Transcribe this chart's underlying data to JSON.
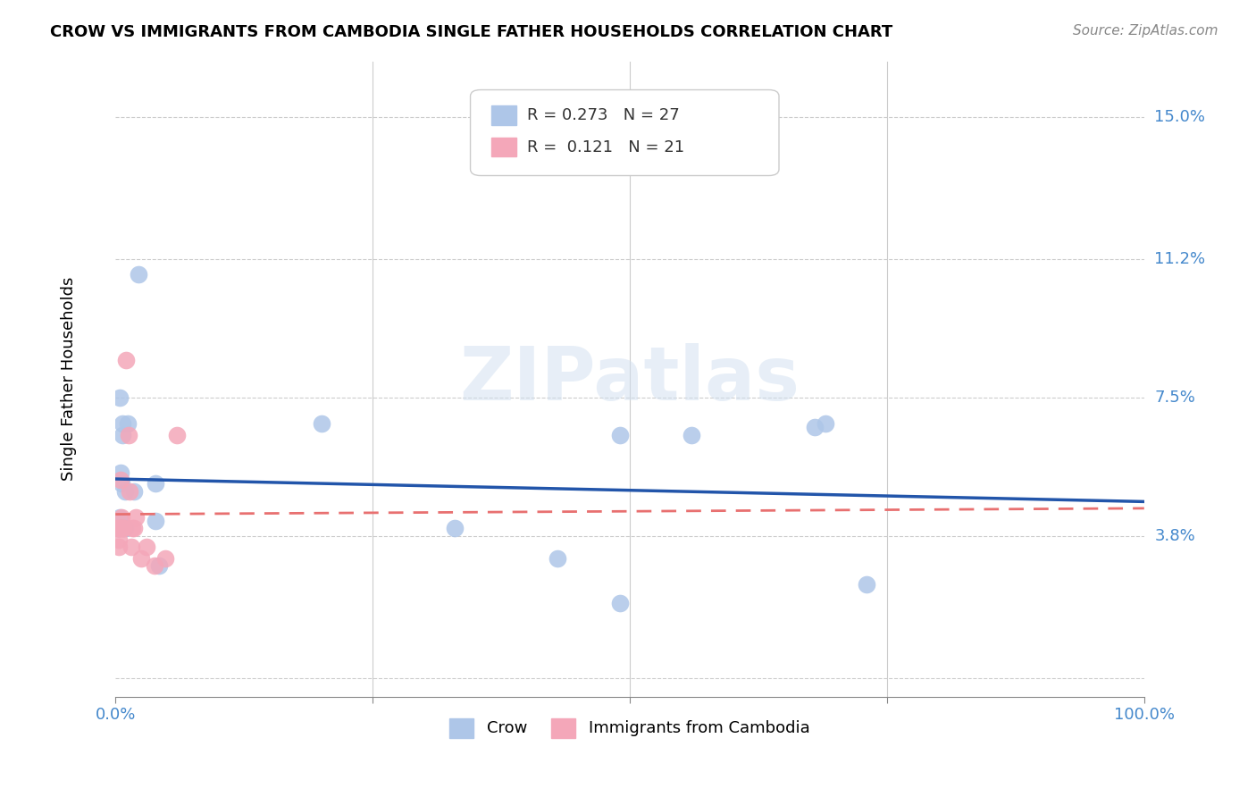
{
  "title": "CROW VS IMMIGRANTS FROM CAMBODIA SINGLE FATHER HOUSEHOLDS CORRELATION CHART",
  "source": "Source: ZipAtlas.com",
  "xlabel": "",
  "ylabel": "Single Father Households",
  "xlim": [
    0,
    1.0
  ],
  "ylim": [
    -0.005,
    0.165
  ],
  "yticks": [
    0.0,
    0.038,
    0.075,
    0.112,
    0.15
  ],
  "ytick_labels": [
    "",
    "3.8%",
    "7.5%",
    "11.2%",
    "15.0%"
  ],
  "xticks": [
    0.0,
    0.25,
    0.5,
    0.75,
    1.0
  ],
  "xtick_labels": [
    "0.0%",
    "",
    "",
    "",
    "100.0%"
  ],
  "crow_R": "0.273",
  "crow_N": "27",
  "camb_R": "0.121",
  "camb_N": "21",
  "crow_color": "#aec6e8",
  "camb_color": "#f4a7b9",
  "crow_line_color": "#2255aa",
  "camb_line_color": "#e87070",
  "background_color": "#ffffff",
  "watermark": "ZIPatlas",
  "crow_x": [
    0.006,
    0.022,
    0.004,
    0.004,
    0.007,
    0.005,
    0.003,
    0.003,
    0.002,
    0.009,
    0.007,
    0.012,
    0.008,
    0.009,
    0.018,
    0.039,
    0.039,
    0.042,
    0.2,
    0.33,
    0.43,
    0.49,
    0.49,
    0.56,
    0.68,
    0.69,
    0.73
  ],
  "crow_y": [
    0.052,
    0.108,
    0.043,
    0.075,
    0.065,
    0.055,
    0.04,
    0.04,
    0.04,
    0.05,
    0.068,
    0.068,
    0.04,
    0.04,
    0.05,
    0.052,
    0.042,
    0.03,
    0.068,
    0.04,
    0.032,
    0.02,
    0.065,
    0.065,
    0.067,
    0.068,
    0.025
  ],
  "camb_x": [
    0.002,
    0.003,
    0.003,
    0.004,
    0.005,
    0.006,
    0.006,
    0.007,
    0.008,
    0.01,
    0.013,
    0.014,
    0.015,
    0.016,
    0.018,
    0.02,
    0.025,
    0.03,
    0.038,
    0.048,
    0.06
  ],
  "camb_y": [
    0.04,
    0.035,
    0.037,
    0.04,
    0.053,
    0.043,
    0.04,
    0.04,
    0.04,
    0.085,
    0.065,
    0.05,
    0.035,
    0.04,
    0.04,
    0.043,
    0.032,
    0.035,
    0.03,
    0.032,
    0.065
  ]
}
